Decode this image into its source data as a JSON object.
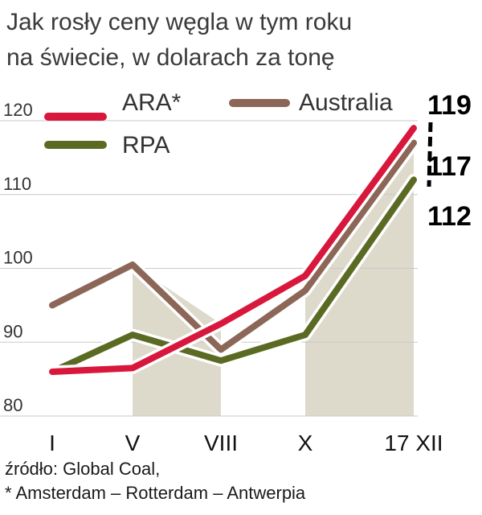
{
  "title_lines": [
    "Jak rosły ceny węgla w tym roku",
    "na świecie, w dolarach za tonę"
  ],
  "source": "źródło: Global Coal,",
  "footnote": "* Amsterdam – Rotterdam – Antwerpia",
  "colors": {
    "ARA*": "#d8173c",
    "Australia": "#8c6657",
    "RPA": "#5b6a22",
    "band": "#ddd9cb"
  },
  "chart_data": {
    "type": "line",
    "categories": [
      "I",
      "V",
      "VIII",
      "X",
      "17 XII"
    ],
    "series": [
      {
        "name": "ARA*",
        "values": [
          86,
          86.5,
          92.5,
          99,
          119
        ],
        "end_label": "119"
      },
      {
        "name": "Australia",
        "values": [
          95,
          100.5,
          89,
          97,
          117
        ],
        "end_label": "117"
      },
      {
        "name": "RPA",
        "values": [
          86,
          91,
          87.5,
          91,
          112
        ],
        "end_label": "112"
      }
    ],
    "ylim": [
      80,
      120
    ],
    "yticks": [
      80,
      90,
      100,
      110,
      120
    ],
    "grid": true,
    "legend": "top"
  }
}
